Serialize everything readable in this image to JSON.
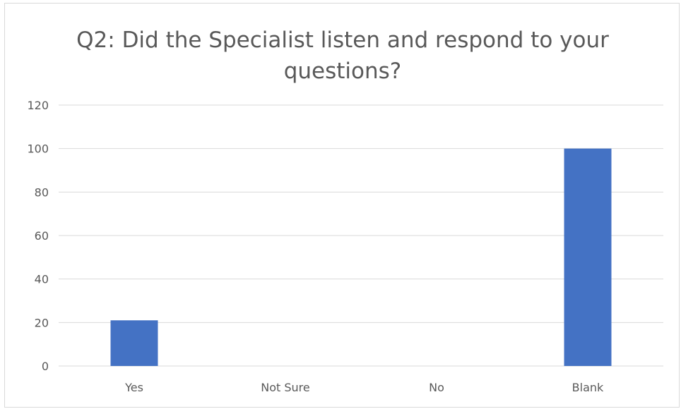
{
  "chart_data": {
    "type": "bar",
    "title_lines": [
      "Q2:  Did the Specialist listen and respond to your",
      "questions?"
    ],
    "categories": [
      "Yes",
      "Not Sure",
      "No",
      "Blank"
    ],
    "values": [
      21,
      0,
      0,
      100
    ],
    "ylim": [
      0,
      120
    ],
    "yticks": [
      "0",
      "20",
      "40",
      "60",
      "80",
      "100",
      "120"
    ],
    "grid": true,
    "bar_color": "#4472C4",
    "grid_color": "#d9d9d9",
    "text_color": "#595959"
  }
}
